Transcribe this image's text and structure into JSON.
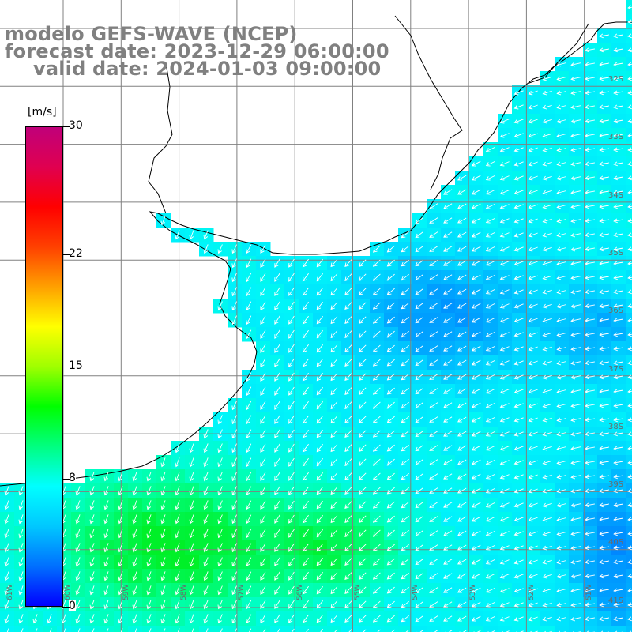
{
  "title": {
    "line1": "modelo GEFS-WAVE (NCEP)",
    "line2": "forecast date: 2023-12-29 06:00:00",
    "line3": "valid date: 2024-01-03 09:00:00"
  },
  "colorbar": {
    "units": "[m/s]",
    "min": 0,
    "max": 30,
    "ticks": [
      {
        "value": 30,
        "label": "30"
      },
      {
        "value": 22,
        "label": "22"
      },
      {
        "value": 15,
        "label": "15"
      },
      {
        "value": 8,
        "label": "8"
      },
      {
        "value": 0,
        "label": "0"
      }
    ],
    "colors": [
      "#0000ff",
      "#0070ff",
      "#00c8ff",
      "#00ffff",
      "#00ff80",
      "#00ff00",
      "#a0ff00",
      "#ffff00",
      "#ffa000",
      "#ff4000",
      "#ff0000",
      "#e00050",
      "#c0007a"
    ]
  },
  "lat_labels": [
    "32S",
    "33S",
    "34S",
    "35S",
    "36S",
    "37S",
    "38S",
    "39S",
    "40S",
    "41S"
  ],
  "lon_labels": [
    "61W",
    "60W",
    "59W",
    "58W",
    "57W",
    "56W",
    "55W",
    "54W",
    "53W",
    "52W",
    "51W"
  ],
  "map": {
    "land_color": "#ffffff",
    "grid_color": "#808080",
    "coast_color": "#000000",
    "arrow_color": "#ffffff",
    "wind_range_m_s": [
      5,
      12
    ],
    "predominant_wind_direction": "NE to SW"
  }
}
